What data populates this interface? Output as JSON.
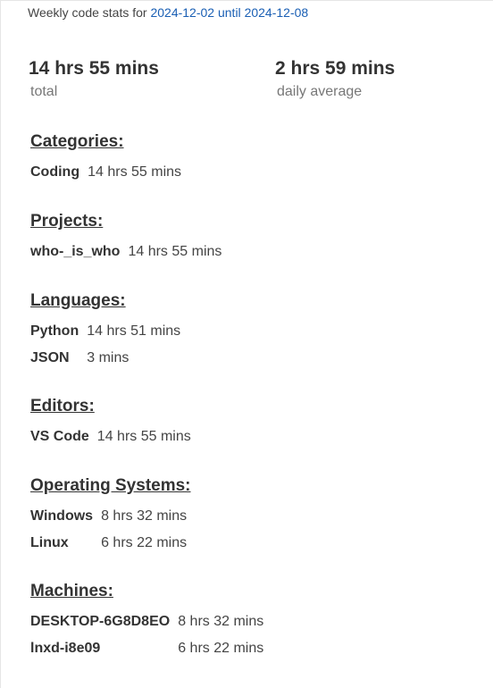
{
  "header": {
    "prefix": "Weekly code stats for",
    "start_date": "2024-12-02",
    "until_word": "until",
    "end_date": "2024-12-08"
  },
  "summary": {
    "total_value": "14 hrs 55 mins",
    "total_label": "total",
    "avg_value": "2 hrs 59 mins",
    "avg_label": "daily average"
  },
  "sections": {
    "categories": {
      "title": "Categories:",
      "rows": [
        {
          "name": "Coding",
          "time": "14 hrs 55 mins"
        }
      ]
    },
    "projects": {
      "title": "Projects:",
      "rows": [
        {
          "name": "who-_is_who",
          "time": "14 hrs 55 mins"
        }
      ]
    },
    "languages": {
      "title": "Languages:",
      "rows": [
        {
          "name": "Python",
          "time": "14 hrs 51 mins"
        },
        {
          "name": "JSON",
          "time": "3 mins"
        }
      ]
    },
    "editors": {
      "title": "Editors:",
      "rows": [
        {
          "name": "VS Code",
          "time": "14 hrs 55 mins"
        }
      ]
    },
    "operating_systems": {
      "title": "Operating Systems:",
      "rows": [
        {
          "name": "Windows",
          "time": "8 hrs 32 mins"
        },
        {
          "name": "Linux",
          "time": "6 hrs 22 mins"
        }
      ]
    },
    "machines": {
      "title": "Machines:",
      "rows": [
        {
          "name": "DESKTOP-6G8D8EO",
          "time": "8 hrs 32 mins"
        },
        {
          "name": "lnxd-i8e09",
          "time": "6 hrs 22 mins"
        }
      ]
    }
  }
}
